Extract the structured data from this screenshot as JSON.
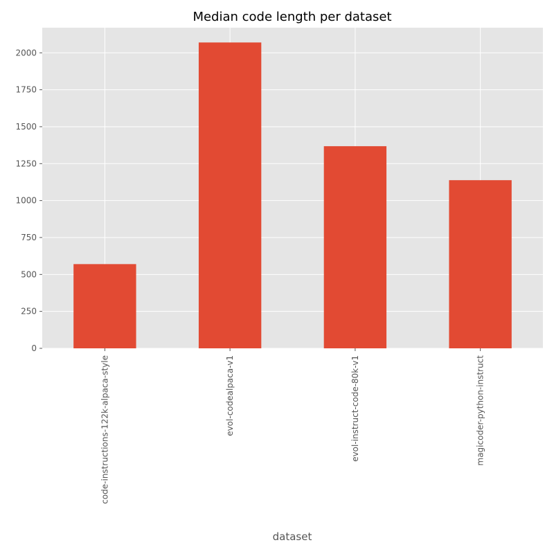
{
  "chart_data": {
    "type": "bar",
    "title": "Median code length per dataset",
    "xlabel": "dataset",
    "ylabel": "",
    "categories": [
      "code-instructions-122k-alpaca-style",
      "evol-codealpaca-v1",
      "evol-instruct-code-80k-v1",
      "magicoder-python-instruct"
    ],
    "values": [
      570,
      2070,
      1368,
      1138
    ],
    "ylim": [
      0,
      2170
    ],
    "yticks": [
      0,
      250,
      500,
      750,
      1000,
      1250,
      1500,
      1750,
      2000
    ],
    "grid": true,
    "colors": {
      "bar": "#e24a33",
      "background": "#e5e5e5",
      "grid": "#ffffff"
    }
  }
}
